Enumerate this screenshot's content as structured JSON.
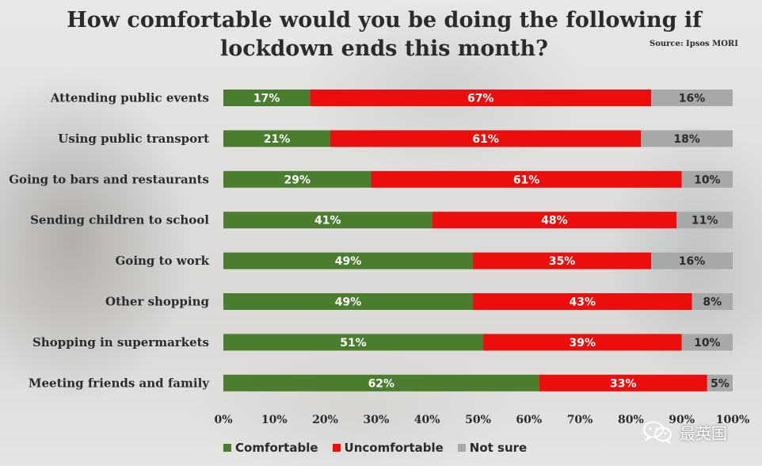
{
  "chart_data": {
    "type": "bar",
    "stacked": true,
    "orientation": "horizontal",
    "title": "How comfortable would you be doing the following if lockdown ends this month?",
    "title_lines": [
      "How comfortable would you be doing the following if",
      "lockdown ends this month?"
    ],
    "source": "Source: Ipsos MORI",
    "categories": [
      "Attending public events",
      "Using public transport",
      "Going to bars and restaurants",
      "Sending children to school",
      "Going to work",
      "Other shopping",
      "Shopping in supermarkets",
      "Meeting friends and family"
    ],
    "series": [
      {
        "name": "Comfortable",
        "color": "#4a7d2e",
        "label_color": "#ffffff",
        "values": [
          17,
          21,
          29,
          41,
          49,
          49,
          51,
          62
        ]
      },
      {
        "name": "Uncomfortable",
        "color": "#ec0d0d",
        "label_color": "#ffffff",
        "values": [
          67,
          61,
          61,
          48,
          35,
          43,
          39,
          33
        ]
      },
      {
        "name": "Not sure",
        "color": "#a8a8a8",
        "label_color": "#2b2b2b",
        "values": [
          16,
          18,
          10,
          11,
          16,
          8,
          10,
          5
        ]
      }
    ],
    "value_suffix": "%",
    "xlim": [
      0,
      100
    ],
    "xticks": [
      "0%",
      "10%",
      "20%",
      "30%",
      "40%",
      "50%",
      "60%",
      "70%",
      "80%",
      "90%",
      "100%"
    ],
    "legend_position": "bottom",
    "grid": false
  },
  "watermark": {
    "text": "最英国",
    "icon": "wechat-icon"
  }
}
